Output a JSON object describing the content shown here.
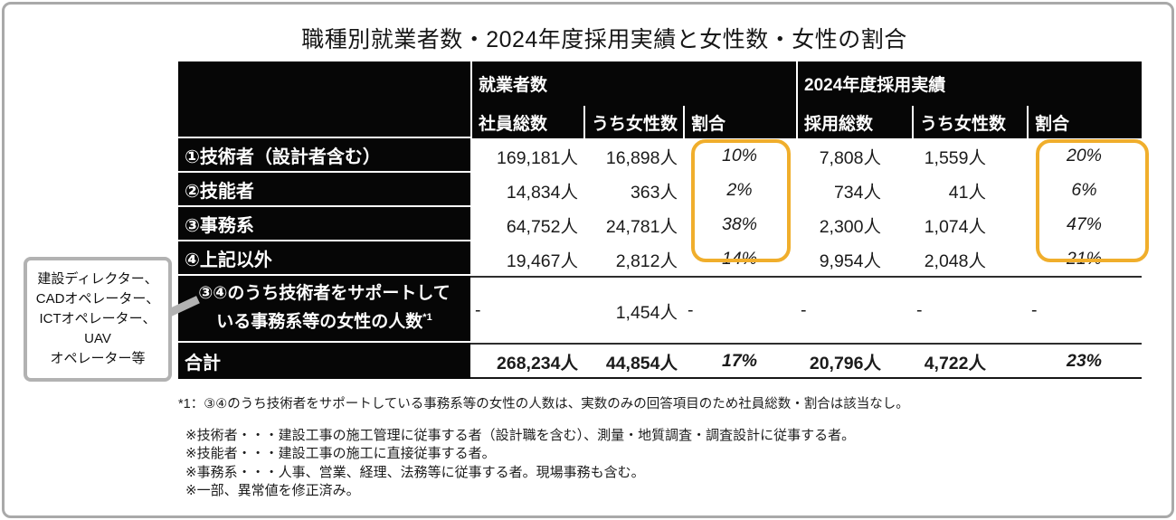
{
  "title": "職種別就業者数・2024年度採用実績と女性数・女性の割合",
  "table": {
    "group_headers": [
      "就業者数",
      "2024年度採用実績"
    ],
    "sub_headers": [
      "社員総数",
      "うち女性数",
      "割合",
      "採用総数",
      "うち女性数",
      "割合"
    ],
    "rows": [
      {
        "label": "①技術者（設計者含む）",
        "values": [
          "169,181人",
          "16,898人",
          "10%",
          "7,808人",
          "1,559人",
          "20%"
        ]
      },
      {
        "label": "②技能者",
        "values": [
          "14,834人",
          "363人",
          "2%",
          "734人",
          "41人",
          "6%"
        ]
      },
      {
        "label": "③事務系",
        "values": [
          "64,752人",
          "24,781人",
          "38%",
          "2,300人",
          "1,074人",
          "47%"
        ]
      },
      {
        "label": "④上記以外",
        "values": [
          "19,467人",
          "2,812人",
          "14%",
          "9,954人",
          "2,048人",
          "21%"
        ]
      },
      {
        "label_line1": "③④のうち技術者をサポートして",
        "label_line2": "いる事務系等の女性の人数",
        "sup": "*1",
        "values": [
          "-",
          "1,454人",
          "-",
          "-",
          "-",
          "-"
        ]
      },
      {
        "label": "合計",
        "values": [
          "268,234人",
          "44,854人",
          "17%",
          "20,796人",
          "4,722人",
          "23%"
        ]
      }
    ]
  },
  "callout": {
    "lines": [
      "建設ディレクター、",
      "CADオペレーター、",
      "ICTオペレーター、UAV",
      "オペレーター等"
    ]
  },
  "footnotes": [
    "*1：③④のうち技術者をサポートしている事務系等の女性の人数は、実数のみの回答項目のため社員総数・割合は該当なし。",
    "※技術者・・・建設工事の施工管理に従事する者（設計職を含む）、測量・地質調査・調査設計に従事する者。",
    "※技能者・・・建設工事の施工に直接従事する者。",
    "※事務系・・・人事、営業、経理、法務等に従事する者。現場事務も含む。",
    "※一部、異常値を修正済み。"
  ],
  "colors": {
    "highlight": "#F0AE2C",
    "callout_border": "#B2B2B2",
    "header_bg": "#060606"
  }
}
